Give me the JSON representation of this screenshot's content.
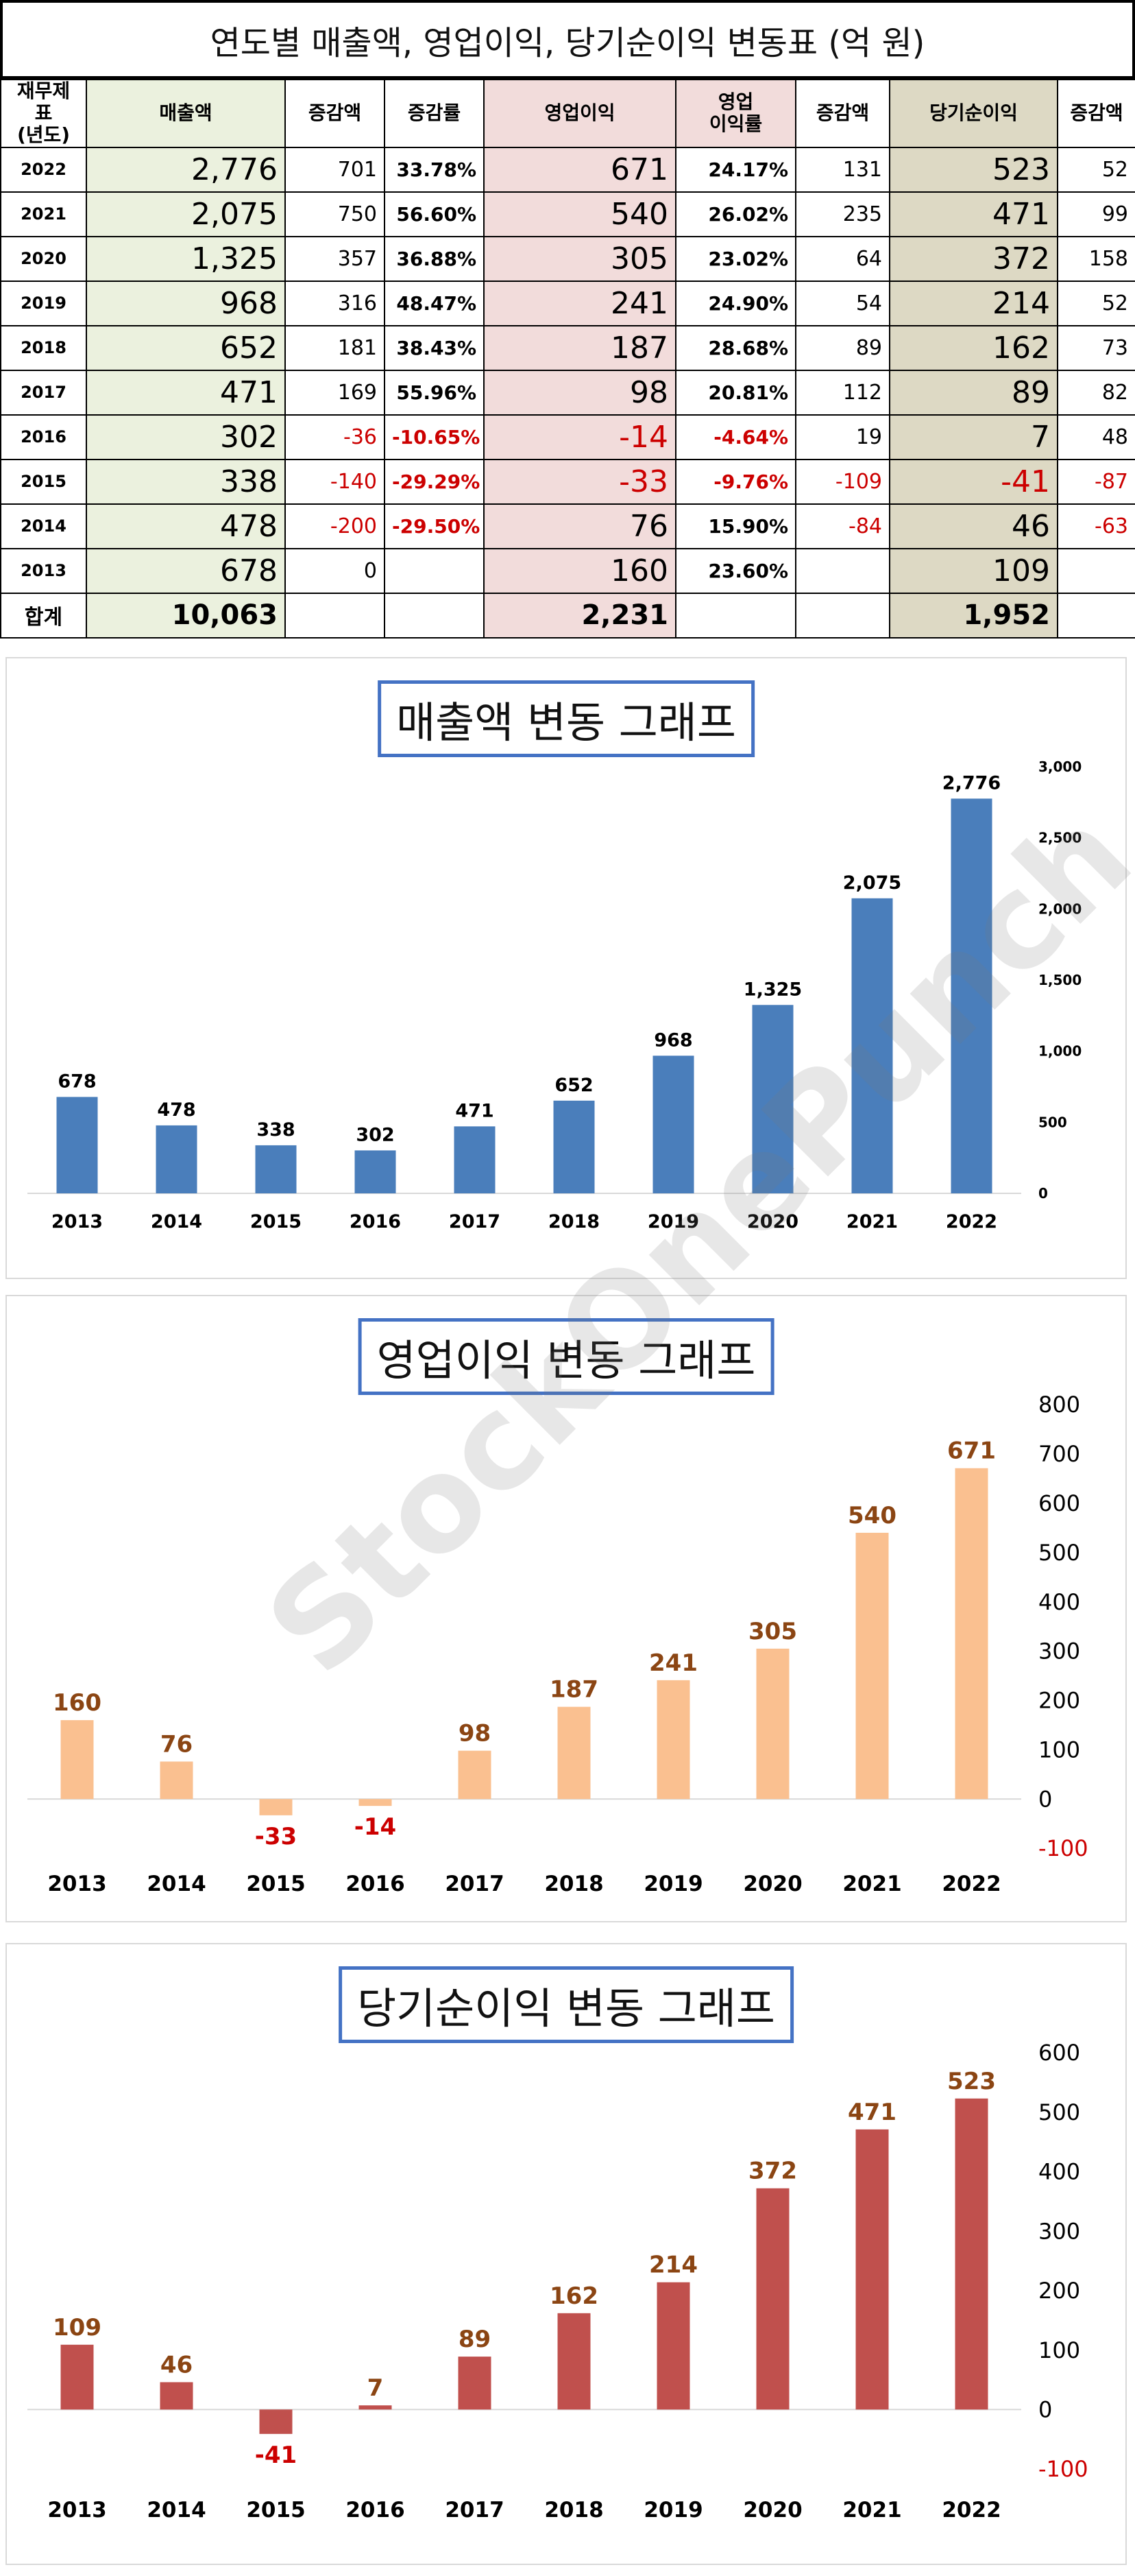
{
  "table": {
    "title": "연도별 매출액, 영업이익, 당기순이익 변동표   (억 원)",
    "headers": {
      "year": "재무제표\n(년도)",
      "sales": "매출액",
      "sales_change": "증감액",
      "sales_rate": "증감률",
      "op": "영업이익",
      "op_margin": "영업\n이익률",
      "op_change": "증감액",
      "net": "당기순이익",
      "net_change": "증감액"
    },
    "rows": [
      {
        "year": "2022",
        "sales": "2,776",
        "sales_change": "701",
        "sales_rate": "33.78%",
        "op": "671",
        "op_margin": "24.17%",
        "op_change": "131",
        "net": "523",
        "net_change": "52"
      },
      {
        "year": "2021",
        "sales": "2,075",
        "sales_change": "750",
        "sales_rate": "56.60%",
        "op": "540",
        "op_margin": "26.02%",
        "op_change": "235",
        "net": "471",
        "net_change": "99"
      },
      {
        "year": "2020",
        "sales": "1,325",
        "sales_change": "357",
        "sales_rate": "36.88%",
        "op": "305",
        "op_margin": "23.02%",
        "op_change": "64",
        "net": "372",
        "net_change": "158"
      },
      {
        "year": "2019",
        "sales": "968",
        "sales_change": "316",
        "sales_rate": "48.47%",
        "op": "241",
        "op_margin": "24.90%",
        "op_change": "54",
        "net": "214",
        "net_change": "52"
      },
      {
        "year": "2018",
        "sales": "652",
        "sales_change": "181",
        "sales_rate": "38.43%",
        "op": "187",
        "op_margin": "28.68%",
        "op_change": "89",
        "net": "162",
        "net_change": "73"
      },
      {
        "year": "2017",
        "sales": "471",
        "sales_change": "169",
        "sales_rate": "55.96%",
        "op": "98",
        "op_margin": "20.81%",
        "op_change": "112",
        "net": "89",
        "net_change": "82"
      },
      {
        "year": "2016",
        "sales": "302",
        "sales_change": "-36",
        "sales_rate": "-10.65%",
        "op": "-14",
        "op_margin": "-4.64%",
        "op_change": "19",
        "net": "7",
        "net_change": "48"
      },
      {
        "year": "2015",
        "sales": "338",
        "sales_change": "-140",
        "sales_rate": "-29.29%",
        "op": "-33",
        "op_margin": "-9.76%",
        "op_change": "-109",
        "net": "-41",
        "net_change": "-87"
      },
      {
        "year": "2014",
        "sales": "478",
        "sales_change": "-200",
        "sales_rate": "-29.50%",
        "op": "76",
        "op_margin": "15.90%",
        "op_change": "-84",
        "net": "46",
        "net_change": "-63"
      },
      {
        "year": "2013",
        "sales": "678",
        "sales_change": "0",
        "sales_rate": "",
        "op": "160",
        "op_margin": "23.60%",
        "op_change": "",
        "net": "109",
        "net_change": ""
      }
    ],
    "total": {
      "label": "합계",
      "sales": "10,063",
      "op": "2,231",
      "net": "1,952"
    }
  },
  "watermark": "StockOnePunch",
  "chart_data": [
    {
      "type": "bar",
      "title": "매출액 변동 그래프",
      "categories": [
        "2013",
        "2014",
        "2015",
        "2016",
        "2017",
        "2018",
        "2019",
        "2020",
        "2021",
        "2022"
      ],
      "values": [
        678,
        478,
        338,
        302,
        471,
        652,
        968,
        1325,
        2075,
        2776
      ],
      "value_labels": [
        "678",
        "478",
        "338",
        "302",
        "471",
        "652",
        "968",
        "1,325",
        "2,075",
        "2,776"
      ],
      "ylim": [
        0,
        3000
      ],
      "yticks": [
        0,
        500,
        1000,
        1500,
        2000,
        2500,
        3000
      ],
      "ytick_labels": [
        "0",
        "500",
        "1,000",
        "1,500",
        "2,000",
        "2,500",
        "3,000"
      ],
      "bar_color": "#4a7ebb",
      "label_color": "#000000",
      "negative_label_color": "#cc0000",
      "axis": "right",
      "grid": false
    },
    {
      "type": "bar",
      "title": "영업이익 변동 그래프",
      "categories": [
        "2013",
        "2014",
        "2015",
        "2016",
        "2017",
        "2018",
        "2019",
        "2020",
        "2021",
        "2022"
      ],
      "values": [
        160,
        76,
        -33,
        -14,
        98,
        187,
        241,
        305,
        540,
        671
      ],
      "value_labels": [
        "160",
        "76",
        "-33",
        "-14",
        "98",
        "187",
        "241",
        "305",
        "540",
        "671"
      ],
      "ylim": [
        -100,
        800
      ],
      "yticks": [
        -100,
        0,
        100,
        200,
        300,
        400,
        500,
        600,
        700,
        800
      ],
      "ytick_labels": [
        "-100",
        "0",
        "100",
        "200",
        "300",
        "400",
        "500",
        "600",
        "700",
        "800"
      ],
      "bar_color": "#fac090",
      "label_color": "#8b4513",
      "negative_label_color": "#cc0000",
      "axis": "right",
      "grid": false
    },
    {
      "type": "bar",
      "title": "당기순이익 변동 그래프",
      "categories": [
        "2013",
        "2014",
        "2015",
        "2016",
        "2017",
        "2018",
        "2019",
        "2020",
        "2021",
        "2022"
      ],
      "values": [
        109,
        46,
        -41,
        7,
        89,
        162,
        214,
        372,
        471,
        523
      ],
      "value_labels": [
        "109",
        "46",
        "-41",
        "7",
        "89",
        "162",
        "214",
        "372",
        "471",
        "523"
      ],
      "ylim": [
        -100,
        600
      ],
      "yticks": [
        -100,
        0,
        100,
        200,
        300,
        400,
        500,
        600
      ],
      "ytick_labels": [
        "-100",
        "0",
        "100",
        "200",
        "300",
        "400",
        "500",
        "600"
      ],
      "bar_color": "#c0504d",
      "label_color": "#8b4513",
      "negative_label_color": "#cc0000",
      "axis": "right",
      "grid": false
    }
  ]
}
